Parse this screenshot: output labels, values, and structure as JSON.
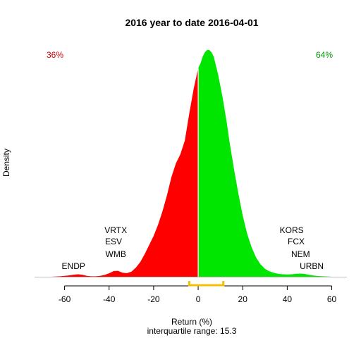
{
  "chart_data": {
    "type": "area",
    "title": "2016  year to date 2016-04-01",
    "xlabel": "Return (%)",
    "ylabel": "Density",
    "subtitle": "interquartile range: 15.3",
    "xlim": [
      -70,
      63
    ],
    "ylim": [
      0,
      1.0
    ],
    "xticks": [
      -60,
      -40,
      -20,
      0,
      20,
      40,
      60
    ],
    "split_x": 0,
    "left_pct": "36%",
    "right_pct": "64%",
    "colors": {
      "negative": "#ff0000",
      "positive": "#00e600",
      "left_text": "#cc0000",
      "right_text": "#009900",
      "iqr": "#f5c000",
      "baseline": "#bfbfbf"
    },
    "iqr": [
      -4,
      11.3
    ],
    "density": {
      "x": [
        -70,
        -66,
        -62,
        -58,
        -56,
        -54,
        -52,
        -50,
        -48,
        -46,
        -44,
        -42,
        -40,
        -38,
        -36,
        -34,
        -32,
        -30,
        -28,
        -26,
        -24,
        -22,
        -20,
        -18,
        -16,
        -14,
        -12,
        -10,
        -8,
        -6,
        -4,
        -2,
        0,
        0.5,
        1,
        2,
        3,
        4,
        5,
        6,
        7,
        8,
        9,
        10,
        11,
        12,
        13,
        14,
        16,
        18,
        20,
        22,
        24,
        26,
        28,
        30,
        32,
        34,
        36,
        38,
        40,
        42,
        44,
        46,
        48,
        50,
        52,
        54,
        56,
        58,
        60,
        63
      ],
      "y": [
        0,
        0,
        0.002,
        0.006,
        0.009,
        0.011,
        0.009,
        0.004,
        0.002,
        0.002,
        0.004,
        0.008,
        0.015,
        0.025,
        0.026,
        0.018,
        0.016,
        0.022,
        0.04,
        0.065,
        0.1,
        0.14,
        0.18,
        0.23,
        0.29,
        0.36,
        0.44,
        0.5,
        0.54,
        0.6,
        0.72,
        0.83,
        0.92,
        0.93,
        0.94,
        0.97,
        0.99,
        1.0,
        1.0,
        0.99,
        0.97,
        0.93,
        0.89,
        0.84,
        0.79,
        0.73,
        0.67,
        0.6,
        0.48,
        0.37,
        0.27,
        0.19,
        0.13,
        0.085,
        0.055,
        0.035,
        0.024,
        0.017,
        0.013,
        0.011,
        0.01,
        0.011,
        0.013,
        0.014,
        0.012,
        0.008,
        0.005,
        0.003,
        0.002,
        0.001,
        0,
        0
      ]
    },
    "annotations": [
      {
        "text": "VRTX",
        "x": -37
      },
      {
        "text": "ESV",
        "x": -38
      },
      {
        "text": "WMB",
        "x": -37
      },
      {
        "text": "ENDP",
        "x": -56
      },
      {
        "text": "KORS",
        "x": 42
      },
      {
        "text": "FCX",
        "x": 44
      },
      {
        "text": "NEM",
        "x": 46
      },
      {
        "text": "URBN",
        "x": 51
      }
    ]
  }
}
